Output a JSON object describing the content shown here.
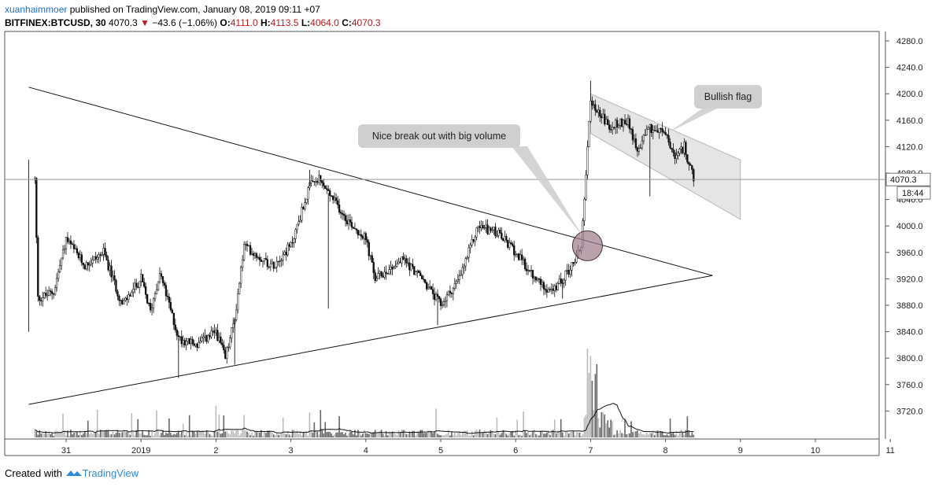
{
  "header": {
    "author": "xuanhaimmoer",
    "published_text": "published on TradingView.com, January 08, 2019 09:11 +07",
    "symbol": "BITFINEX:BTCUSD, 30",
    "last": "4070.3",
    "change_arrow": "▼",
    "change": "−43.6 (−1.06%)",
    "o_label": "O:",
    "o_value": "4111.0",
    "h_label": "H:",
    "h_value": "4113.5",
    "l_label": "L:",
    "l_value": "4064.0",
    "c_label": "C:",
    "c_value": "4070.3"
  },
  "footer": {
    "created_with": "Created with",
    "brand": "TradingView",
    "logo_icon": "tradingview-logo-icon"
  },
  "colors": {
    "up_price": "#222222",
    "down_change": "#b71c1c",
    "volume": "#888888",
    "flag_fill": "#dcdcdc",
    "circle_fill": "#9c7a8a",
    "callout_fill": "#cfcfcf"
  },
  "chart_data": {
    "type": "candlestick",
    "y_range": [
      3690,
      4300
    ],
    "y_ticks": [
      "4280.0",
      "4240.0",
      "4200.0",
      "4160.0",
      "4120.0",
      "4080.0",
      "4040.0",
      "4000.0",
      "3960.0",
      "3920.0",
      "3880.0",
      "3840.0",
      "3800.0",
      "3760.0",
      "3720.0"
    ],
    "x_ticks": [
      "31",
      "2019",
      "2",
      "3",
      "4",
      "5",
      "6",
      "7",
      "8",
      "9",
      "10",
      "11"
    ],
    "last_price_label": "4070.3",
    "countdown_label": "18:44",
    "annotations": {
      "breakout": "Nice break out with big volume",
      "flag": "Bullish flag"
    },
    "price_path": [
      [
        "Dec 30 14:00",
        4070
      ],
      [
        "Dec 30 15:00",
        3890
      ],
      [
        "Dec 30 20:00",
        3900
      ],
      [
        "Dec 31 00:00",
        3980
      ],
      [
        "Dec 31 06:00",
        3940
      ],
      [
        "Dec 31 12:00",
        3960
      ],
      [
        "Dec 31 18:00",
        3880
      ],
      [
        "Jan 1 00:00",
        3920
      ],
      [
        "Jan 1 03:00",
        3870
      ],
      [
        "Jan 1 06:00",
        3930
      ],
      [
        "Jan 1 12:00",
        3830
      ],
      [
        "Jan 1 18:00",
        3820
      ],
      [
        "Jan 2 00:00",
        3840
      ],
      [
        "Jan 2 03:00",
        3800
      ],
      [
        "Jan 2 06:00",
        3860
      ],
      [
        "Jan 2 09:00",
        3970
      ],
      [
        "Jan 2 18:00",
        3940
      ],
      [
        "Jan 3 00:00",
        3970
      ],
      [
        "Jan 3 06:00",
        4060
      ],
      [
        "Jan 3 09:00",
        4070
      ],
      [
        "Jan 3 18:00",
        4010
      ],
      [
        "Jan 4 00:00",
        3980
      ],
      [
        "Jan 4 03:00",
        3920
      ],
      [
        "Jan 4 12:00",
        3950
      ],
      [
        "Jan 4 18:00",
        3920
      ],
      [
        "Jan 5 00:00",
        3880
      ],
      [
        "Jan 5 06:00",
        3920
      ],
      [
        "Jan 5 12:00",
        4000
      ],
      [
        "Jan 5 18:00",
        3990
      ],
      [
        "Jan 6 00:00",
        3960
      ],
      [
        "Jan 6 06:00",
        3920
      ],
      [
        "Jan 6 12:00",
        3900
      ],
      [
        "Jan 6 18:00",
        3940
      ],
      [
        "Jan 6 21:00",
        3970
      ],
      [
        "Jan 7 00:00",
        4190
      ],
      [
        "Jan 7 06:00",
        4150
      ],
      [
        "Jan 7 12:00",
        4160
      ],
      [
        "Jan 7 15:00",
        4110
      ],
      [
        "Jan 7 18:00",
        4150
      ],
      [
        "Jan 8 00:00",
        4140
      ],
      [
        "Jan 8 03:00",
        4100
      ],
      [
        "Jan 8 06:00",
        4120
      ],
      [
        "Jan 8 09:00",
        4070.3
      ]
    ],
    "lows": [
      [
        "Dec 30 12:00",
        3840
      ],
      [
        "Jan 1 12:00",
        3770
      ],
      [
        "Jan 2 06:00",
        3790
      ],
      [
        "Jan 3 12:00",
        3875
      ],
      [
        "Jan 4 23:00",
        3850
      ],
      [
        "Jan 6 15:00",
        3890
      ],
      [
        "Jan 7 19:00",
        4045
      ]
    ],
    "highs": [
      [
        "Dec 30 12:00",
        4100
      ],
      [
        "Jan 3 06:00",
        4085
      ],
      [
        "Jan 5 15:00",
        4010
      ],
      [
        "Jan 7 00:00",
        4220
      ]
    ],
    "trendlines": [
      {
        "name": "Upper triangle line",
        "from": [
          "Dec 30 12:00",
          4210
        ],
        "to": [
          "Jan 8 15:00",
          3925
        ]
      },
      {
        "name": "Lower triangle line",
        "from": [
          "Dec 30 12:00",
          3730
        ],
        "to": [
          "Jan 8 15:00",
          3925
        ]
      }
    ],
    "flag_channel": {
      "from": [
        "Jan 7 00:00",
        4200,
        4140
      ],
      "to": [
        "Jan 9 00:00",
        4100,
        4010
      ]
    },
    "grid": false
  }
}
